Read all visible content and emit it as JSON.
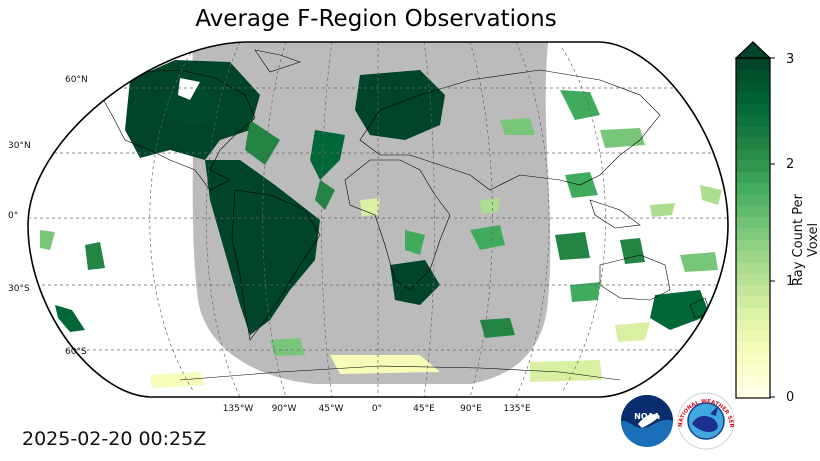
{
  "title": "Average F-Region Observations",
  "timestamp": "2025-02-20 00:25Z",
  "colorbar": {
    "label": "Ray Count Per Voxel",
    "ticks": [
      "0",
      "1",
      "2",
      "3"
    ],
    "extend": "max",
    "colors": [
      "#ffffe5",
      "#f7fcb9",
      "#d9f0a3",
      "#addd8e",
      "#78c679",
      "#41ab5d",
      "#238443",
      "#006837",
      "#004529"
    ]
  },
  "map": {
    "projection": "Robinson",
    "lat_labels": [
      "60°N",
      "30°N",
      "0°",
      "30°S",
      "60°S"
    ],
    "lon_labels": [
      "135°W",
      "90°W",
      "45°W",
      "0°",
      "45°E",
      "90°E",
      "135°E"
    ],
    "night_color": "#bbbbbb"
  },
  "logos": {
    "noaa": "NOAA",
    "nws": "NATIONAL WEATHER SERVICE"
  }
}
